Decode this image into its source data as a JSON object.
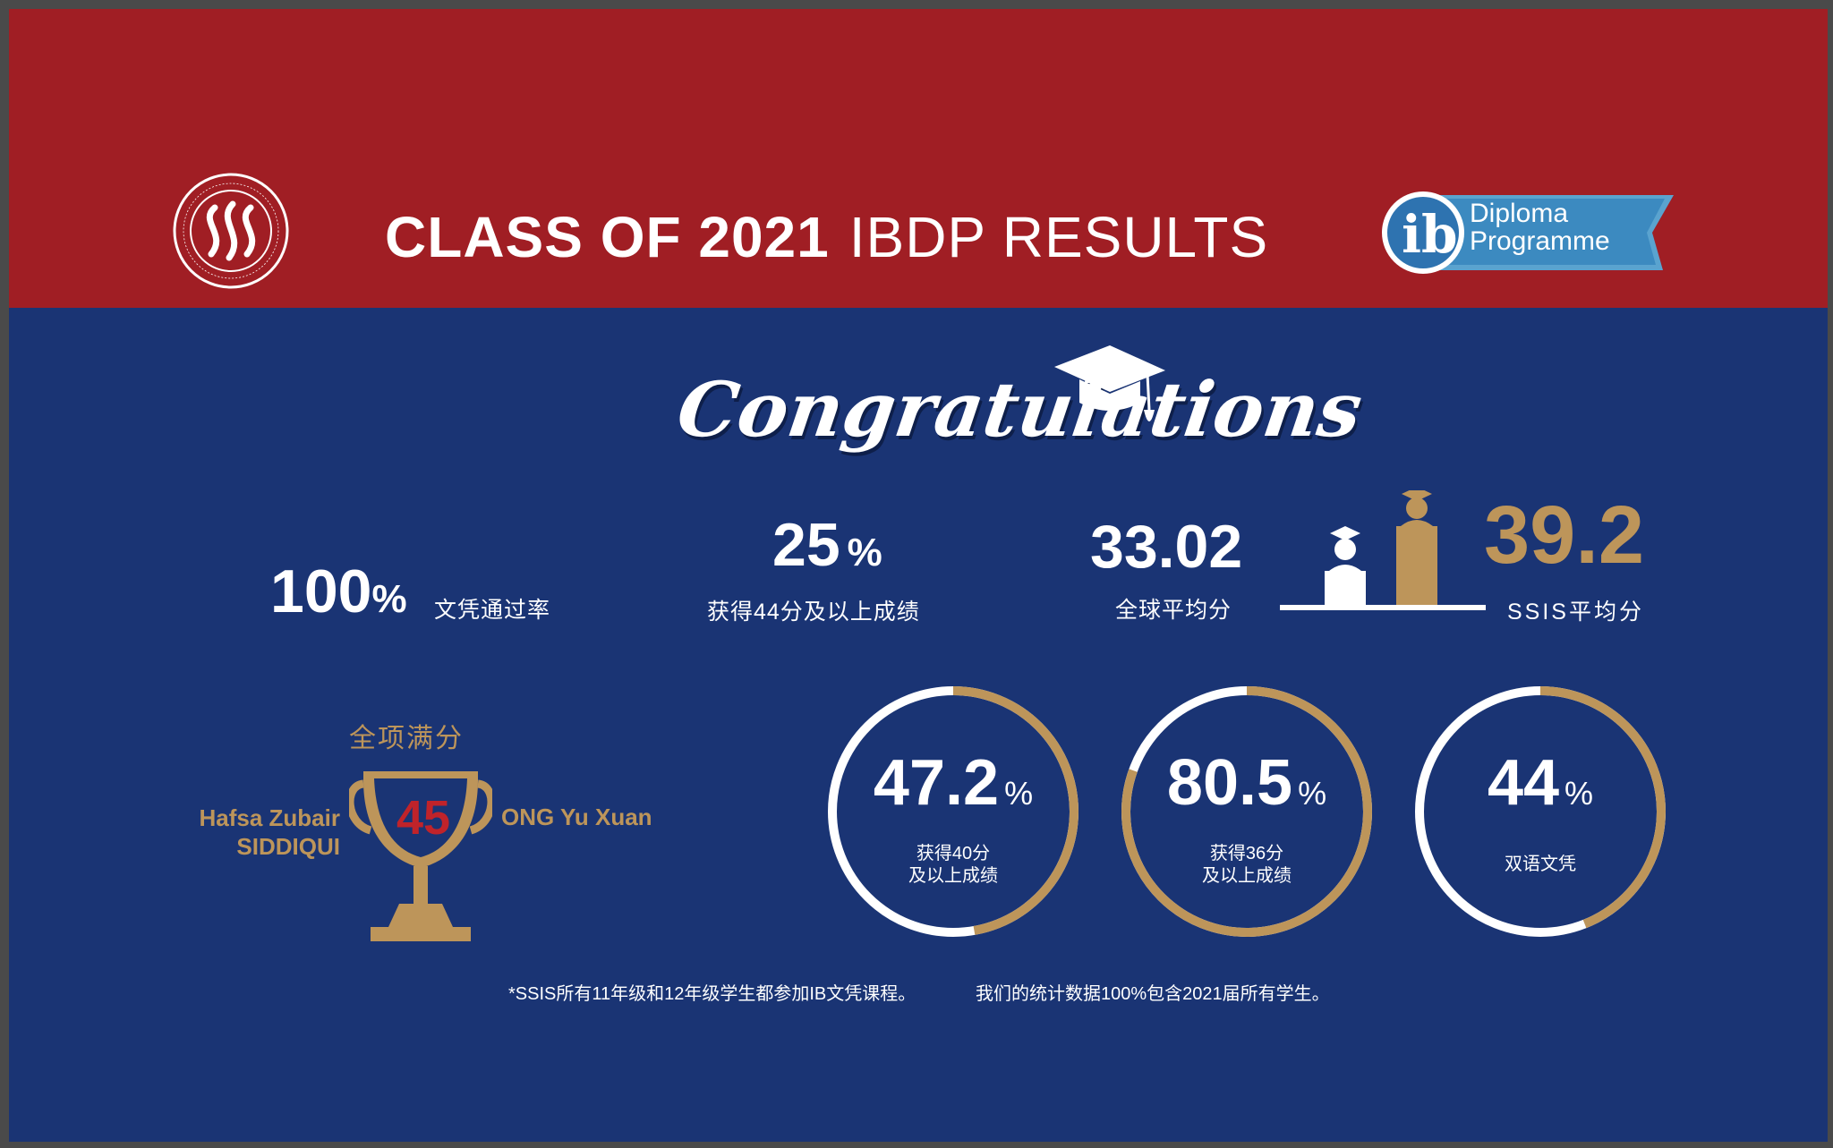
{
  "header": {
    "title_bold": "CLASS OF 2021",
    "title_light": "IBDP RESULTS",
    "school_logo": "ssis-school-seal",
    "ib_logo": "ib-diploma-programme-badge",
    "ib_text_line1": "Diploma",
    "ib_text_line2": "Programme"
  },
  "banner": {
    "congrats": "Congratulations"
  },
  "stats": {
    "pass": {
      "value": "100",
      "unit": "%",
      "label": "文凭通过率"
    },
    "over44": {
      "value": "25",
      "unit": "%",
      "label": "获得44分及以上成绩"
    },
    "global_avg": {
      "value": "33.02",
      "label": "全球平均分"
    },
    "ssis_avg": {
      "value": "39.2",
      "label": "SSIS平均分"
    }
  },
  "perfect": {
    "label": "全项满分",
    "score": "45",
    "student_left_line1": "Hafsa Zubair",
    "student_left_line2": "SIDDIQUI",
    "student_right": "ONG Yu Xuan"
  },
  "rings": [
    {
      "value": "47.2",
      "unit": "%",
      "line1": "获得40分",
      "line2": "及以上成绩",
      "fraction": 0.472
    },
    {
      "value": "80.5",
      "unit": "%",
      "line1": "获得36分",
      "line2": "及以上成绩",
      "fraction": 0.805
    },
    {
      "value": "44",
      "unit": "%",
      "line1": "双语文凭",
      "line2": "",
      "fraction": 0.44
    }
  ],
  "footnotes": {
    "left": "*SSIS所有11年级和12年级学生都参加IB文凭课程。",
    "right": "我们的统计数据100%包含2021届所有学生。"
  },
  "colors": {
    "red": "#a01e24",
    "navy": "#1a3474",
    "gold": "#bd955a",
    "white": "#ffffff"
  }
}
